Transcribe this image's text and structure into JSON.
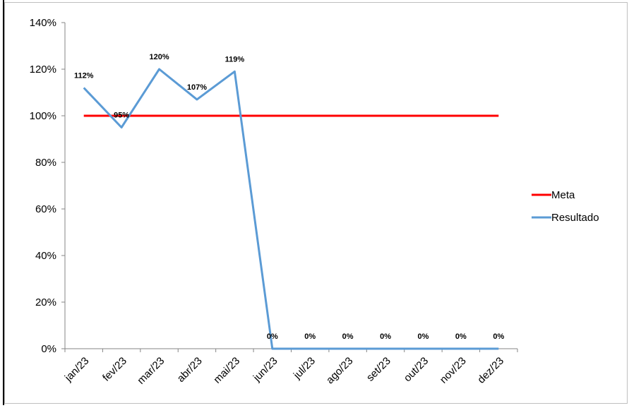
{
  "chart_data": {
    "type": "line",
    "title": "",
    "xlabel": "",
    "ylabel": "",
    "categories": [
      "jan/23",
      "fev/23",
      "mar/23",
      "abr/23",
      "mai/23",
      "jun/23",
      "jul/23",
      "ago/23",
      "set/23",
      "out/23",
      "nov/23",
      "dez/23"
    ],
    "y_ticks": [
      "0%",
      "20%",
      "40%",
      "60%",
      "80%",
      "100%",
      "120%",
      "140%"
    ],
    "ylim": [
      0,
      140
    ],
    "grid": false,
    "legend_placement": "right",
    "series": [
      {
        "name": "Meta",
        "color": "#ff0000",
        "values": [
          100,
          100,
          100,
          100,
          100,
          100,
          100,
          100,
          100,
          100,
          100,
          100
        ],
        "show_labels": false
      },
      {
        "name": "Resultado",
        "color": "#5b9bd5",
        "values": [
          112,
          95,
          120,
          107,
          119,
          0,
          0,
          0,
          0,
          0,
          0,
          0
        ],
        "labels": [
          "112%",
          "95%",
          "120%",
          "107%",
          "119%",
          "0%",
          "0%",
          "0%",
          "0%",
          "0%",
          "0%",
          "0%"
        ],
        "show_labels": true
      }
    ]
  }
}
